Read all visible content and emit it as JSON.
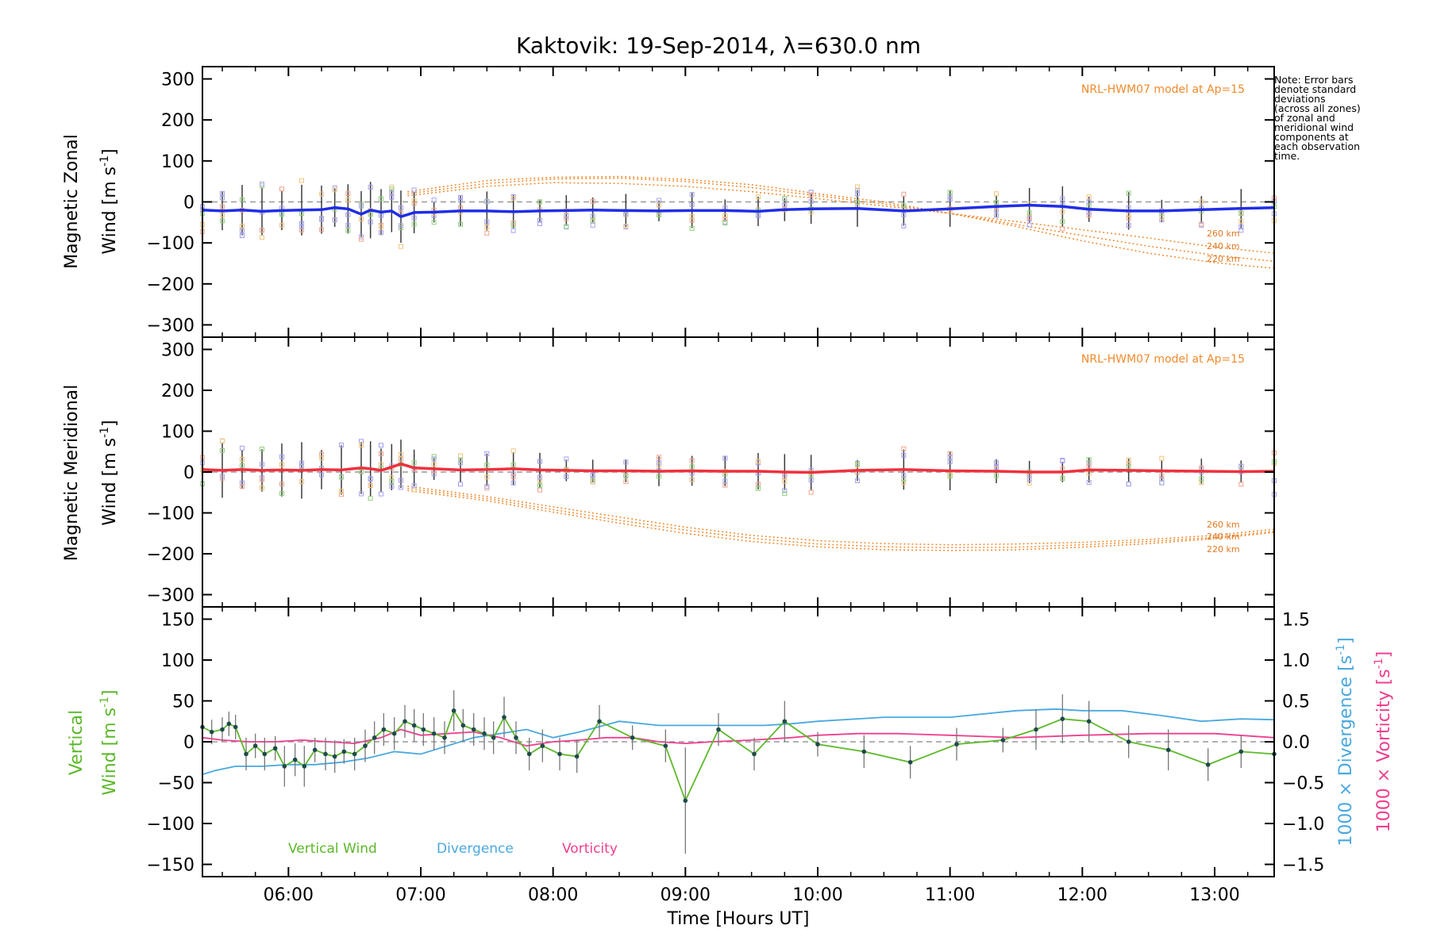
{
  "chart_data": [
    {
      "type": "line",
      "panel": "zonal",
      "title": "Kaktovik: 19-Sep-2014, λ=630.0 nm",
      "ylabel_line1": "Magnetic Zonal",
      "ylabel_line2": "Wind [m s",
      "ylabel_sup": "-1",
      "ylabel_end": "]",
      "ylim": [
        -330,
        330
      ],
      "yticks": [
        300,
        200,
        100,
        0,
        -100,
        -200,
        -300
      ],
      "ytick_labels": [
        "300",
        "200",
        "100",
        "0",
        "−100",
        "−200",
        "−300"
      ],
      "xlim": [
        5.35,
        13.45
      ],
      "model_label": "NRL-HWM07 model at Ap=15",
      "height_labels": [
        "260 km",
        "240 km",
        "220 km"
      ],
      "series": [
        {
          "color": "#1f2de8",
          "x": [
            5.35,
            5.5,
            5.65,
            5.8,
            5.95,
            6.1,
            6.25,
            6.35,
            6.45,
            6.55,
            6.62,
            6.7,
            6.78,
            6.85,
            6.95,
            7.1,
            7.3,
            7.5,
            7.7,
            7.9,
            8.1,
            8.3,
            8.55,
            8.8,
            9.05,
            9.3,
            9.55,
            9.75,
            9.95,
            10.3,
            10.65,
            11.0,
            11.35,
            11.6,
            11.85,
            12.05,
            12.35,
            12.6,
            12.9,
            13.2,
            13.45
          ],
          "y": [
            -20,
            -22,
            -20,
            -23,
            -21,
            -20,
            -19,
            -14,
            -17,
            -30,
            -20,
            -25,
            -22,
            -36,
            -26,
            -25,
            -22,
            -22,
            -24,
            -22,
            -21,
            -20,
            -21,
            -22,
            -21,
            -21,
            -23,
            -19,
            -17,
            -16,
            -22,
            -17,
            -11,
            -8,
            -11,
            -18,
            -22,
            -22,
            -19,
            -16,
            -14
          ]
        }
      ],
      "model_curves": [
        {
          "name": "260 km",
          "x": [
            6.9,
            7.5,
            8.0,
            8.5,
            9.0,
            9.5,
            10.0,
            10.5,
            11.0,
            11.5,
            12.0,
            12.5,
            13.0,
            13.45
          ],
          "y": [
            15,
            38,
            47,
            45,
            38,
            25,
            8,
            -10,
            -28,
            -48,
            -68,
            -88,
            -110,
            -125
          ]
        },
        {
          "name": "240 km",
          "x": [
            6.9,
            7.5,
            8.0,
            8.5,
            9.0,
            9.5,
            10.0,
            10.5,
            11.0,
            11.5,
            12.0,
            12.5,
            13.0,
            13.45
          ],
          "y": [
            20,
            45,
            56,
            58,
            50,
            35,
            15,
            -5,
            -28,
            -55,
            -82,
            -108,
            -130,
            -145
          ]
        },
        {
          "name": "220 km",
          "x": [
            6.9,
            7.5,
            8.0,
            8.5,
            9.0,
            9.5,
            10.0,
            10.5,
            11.0,
            11.5,
            12.0,
            12.5,
            13.0,
            13.45
          ],
          "y": [
            25,
            52,
            60,
            62,
            55,
            42,
            20,
            0,
            -28,
            -60,
            -95,
            -125,
            -148,
            -162
          ]
        }
      ]
    },
    {
      "type": "line",
      "panel": "meridional",
      "ylabel_line1": "Magnetic Meridional",
      "ylabel_line2": "Wind [m s",
      "ylabel_sup": "-1",
      "ylabel_end": "]",
      "ylim": [
        -330,
        330
      ],
      "yticks": [
        300,
        200,
        100,
        0,
        -100,
        -200,
        -300
      ],
      "ytick_labels": [
        "300",
        "200",
        "100",
        "0",
        "−100",
        "−200",
        "−300"
      ],
      "xlim": [
        5.35,
        13.45
      ],
      "model_label": "NRL-HWM07 model at Ap=15",
      "height_labels": [
        "260 km",
        "240 km",
        "220 km"
      ],
      "series": [
        {
          "color": "#f0303c",
          "x": [
            5.35,
            5.5,
            5.65,
            5.8,
            5.95,
            6.1,
            6.25,
            6.4,
            6.55,
            6.62,
            6.7,
            6.78,
            6.85,
            6.95,
            7.1,
            7.3,
            7.5,
            7.7,
            7.9,
            8.1,
            8.3,
            8.55,
            8.8,
            9.05,
            9.3,
            9.55,
            9.75,
            9.95,
            10.3,
            10.65,
            11.0,
            11.35,
            11.6,
            11.85,
            12.05,
            12.35,
            12.6,
            12.9,
            13.2,
            13.45
          ],
          "y": [
            6,
            4,
            6,
            4,
            5,
            4,
            6,
            5,
            10,
            8,
            4,
            12,
            20,
            10,
            8,
            5,
            6,
            8,
            5,
            4,
            3,
            3,
            2,
            3,
            2,
            2,
            0,
            -1,
            4,
            6,
            3,
            2,
            0,
            0,
            5,
            4,
            3,
            2,
            1,
            2
          ]
        }
      ],
      "model_curves": [
        {
          "name": "260 km",
          "x": [
            6.9,
            7.5,
            8.0,
            8.5,
            9.0,
            9.5,
            10.0,
            10.5,
            11.0,
            11.5,
            12.0,
            12.5,
            13.0,
            13.45
          ],
          "y": [
            -35,
            -60,
            -85,
            -110,
            -135,
            -155,
            -168,
            -175,
            -178,
            -176,
            -172,
            -165,
            -155,
            -140
          ]
        },
        {
          "name": "240 km",
          "x": [
            6.9,
            7.5,
            8.0,
            8.5,
            9.0,
            9.5,
            10.0,
            10.5,
            11.0,
            11.5,
            12.0,
            12.5,
            13.0,
            13.45
          ],
          "y": [
            -40,
            -65,
            -92,
            -118,
            -142,
            -162,
            -176,
            -183,
            -185,
            -184,
            -178,
            -170,
            -160,
            -145
          ]
        },
        {
          "name": "220 km",
          "x": [
            6.9,
            7.5,
            8.0,
            8.5,
            9.0,
            9.5,
            10.0,
            10.5,
            11.0,
            11.5,
            12.0,
            12.5,
            13.0,
            13.45
          ],
          "y": [
            -45,
            -70,
            -98,
            -125,
            -150,
            -170,
            -183,
            -190,
            -192,
            -190,
            -184,
            -175,
            -163,
            -148
          ]
        }
      ]
    },
    {
      "type": "line",
      "panel": "vertical",
      "ylabel_line1": "Vertical",
      "ylabel_line2": "Wind [m s",
      "ylabel_sup": "-1",
      "ylabel_end": "]",
      "ylim": [
        -165,
        165
      ],
      "yticks": [
        150,
        100,
        50,
        0,
        -50,
        -100,
        -150
      ],
      "ytick_labels": [
        "150",
        "100",
        "50",
        "0",
        "−50",
        "−100",
        "−150"
      ],
      "y2ticks": [
        1.5,
        1.0,
        0.5,
        0.0,
        -0.5,
        -1.0,
        -1.5
      ],
      "y2tick_labels": [
        "1.5",
        "1.0",
        "0.5",
        "0.0",
        "−0.5",
        "−1.0",
        "−1.5"
      ],
      "y2label_div": "1000 × Divergence [s",
      "y2label_vort": "1000 × Vorticity [s",
      "y2label_sup": "-1",
      "y2label_end": "]",
      "xlim": [
        5.35,
        13.45
      ],
      "xticks": [
        6,
        7,
        8,
        9,
        10,
        11,
        12,
        13
      ],
      "xtick_labels": [
        "06:00",
        "07:00",
        "08:00",
        "09:00",
        "10:00",
        "11:00",
        "12:00",
        "13:00"
      ],
      "xlabel": "Time [Hours UT]",
      "legend": [
        "Vertical Wind",
        "Divergence",
        "Vorticity"
      ],
      "colors": {
        "vertical": "#5cb82a",
        "divergence": "#49a8df",
        "vorticity": "#ef3f8e"
      },
      "vertical_wind": {
        "x": [
          5.35,
          5.42,
          5.5,
          5.55,
          5.6,
          5.68,
          5.75,
          5.82,
          5.9,
          5.97,
          6.05,
          6.12,
          6.2,
          6.28,
          6.35,
          6.42,
          6.5,
          6.58,
          6.65,
          6.72,
          6.8,
          6.88,
          6.95,
          7.02,
          7.1,
          7.18,
          7.25,
          7.32,
          7.4,
          7.48,
          7.55,
          7.63,
          7.72,
          7.82,
          7.92,
          8.05,
          8.18,
          8.35,
          8.6,
          8.85,
          9.0,
          9.25,
          9.52,
          9.75,
          10.0,
          10.35,
          10.7,
          11.05,
          11.4,
          11.65,
          11.85,
          12.05,
          12.35,
          12.65,
          12.95,
          13.2,
          13.45
        ],
        "y": [
          18,
          12,
          15,
          22,
          18,
          -15,
          -5,
          -15,
          -8,
          -30,
          -22,
          -30,
          -10,
          -15,
          -18,
          -12,
          -15,
          -5,
          5,
          15,
          10,
          25,
          20,
          15,
          10,
          5,
          38,
          20,
          15,
          10,
          5,
          30,
          5,
          -15,
          -5,
          -15,
          -18,
          25,
          5,
          -5,
          -72,
          15,
          -15,
          25,
          -3,
          -12,
          -25,
          -3,
          2,
          15,
          28,
          25,
          0,
          -10,
          -28,
          -12,
          -15
        ]
      },
      "vertical_err": [
        15,
        15,
        15,
        15,
        15,
        20,
        15,
        20,
        15,
        25,
        20,
        25,
        15,
        20,
        20,
        15,
        20,
        20,
        20,
        20,
        20,
        20,
        20,
        20,
        20,
        20,
        25,
        20,
        20,
        20,
        20,
        25,
        20,
        20,
        20,
        20,
        20,
        20,
        15,
        20,
        65,
        20,
        20,
        25,
        15,
        20,
        20,
        20,
        15,
        25,
        30,
        25,
        20,
        25,
        20,
        20,
        20
      ],
      "divergence": {
        "x": [
          5.35,
          5.45,
          5.6,
          5.8,
          6.0,
          6.2,
          6.4,
          6.6,
          6.8,
          7.0,
          7.2,
          7.4,
          7.6,
          7.8,
          8.0,
          8.2,
          8.5,
          8.8,
          9.0,
          9.3,
          9.6,
          9.8,
          10.0,
          10.5,
          11.0,
          11.5,
          11.8,
          12.0,
          12.3,
          12.6,
          12.9,
          13.2,
          13.45
        ],
        "y": [
          -0.4,
          -0.35,
          -0.3,
          -0.3,
          -0.28,
          -0.28,
          -0.25,
          -0.2,
          -0.12,
          -0.15,
          -0.05,
          0.05,
          0.1,
          0.15,
          0.05,
          0.12,
          0.25,
          0.2,
          0.2,
          0.2,
          0.2,
          0.22,
          0.25,
          0.3,
          0.3,
          0.38,
          0.4,
          0.38,
          0.38,
          0.32,
          0.25,
          0.28,
          0.27
        ]
      },
      "vorticity": {
        "x": [
          5.35,
          5.5,
          5.7,
          5.9,
          6.1,
          6.3,
          6.5,
          6.7,
          6.85,
          7.0,
          7.2,
          7.4,
          7.6,
          7.8,
          8.0,
          8.2,
          8.4,
          8.6,
          8.8,
          9.0,
          9.2,
          9.5,
          9.8,
          10.0,
          10.3,
          10.6,
          11.0,
          11.5,
          12.0,
          12.5,
          13.0,
          13.45
        ],
        "y": [
          0.05,
          0.02,
          0.0,
          0.0,
          0.02,
          0.0,
          -0.02,
          0.05,
          0.15,
          0.08,
          0.1,
          0.12,
          0.05,
          -0.05,
          0.0,
          0.02,
          0.05,
          0.05,
          0.0,
          -0.02,
          0.0,
          0.02,
          0.05,
          0.08,
          0.1,
          0.1,
          0.08,
          0.05,
          0.08,
          0.1,
          0.1,
          0.05
        ]
      }
    }
  ],
  "note_lines": [
    "Note: Error bars",
    "denote standard",
    "deviations",
    "(across all zones)",
    "of zonal and",
    "meridional wind",
    "components at",
    "each observation",
    "time."
  ]
}
